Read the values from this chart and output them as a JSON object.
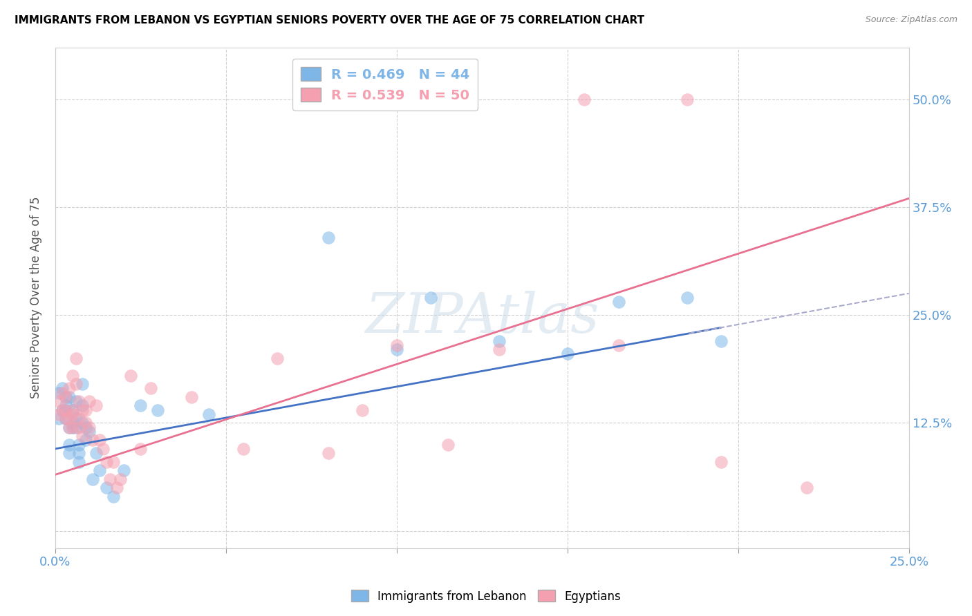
{
  "title": "IMMIGRANTS FROM LEBANON VS EGYPTIAN SENIORS POVERTY OVER THE AGE OF 75 CORRELATION CHART",
  "source": "Source: ZipAtlas.com",
  "ylabel": "Seniors Poverty Over the Age of 75",
  "xlim": [
    0.0,
    0.25
  ],
  "ylim": [
    -0.02,
    0.56
  ],
  "ytick_positions": [
    0.0,
    0.125,
    0.25,
    0.375,
    0.5
  ],
  "ytick_labels": [
    "",
    "12.5%",
    "25.0%",
    "37.5%",
    "50.0%"
  ],
  "xtick_positions": [
    0.0,
    0.05,
    0.1,
    0.15,
    0.2,
    0.25
  ],
  "xtick_labels": [
    "0.0%",
    "",
    "",
    "",
    "",
    "25.0%"
  ],
  "legend_labels": [
    "R = 0.469   N = 44",
    "R = 0.539   N = 50"
  ],
  "blue_color": "#7eb6e8",
  "pink_color": "#f4a0b0",
  "blue_line_color": "#4472c4",
  "pink_line_color": "#e87090",
  "watermark": "ZIPAtlas",
  "blue_intercept": 0.095,
  "blue_slope": 0.72,
  "pink_intercept": 0.065,
  "pink_slope": 1.28,
  "blue_points_x": [
    0.001,
    0.001,
    0.002,
    0.002,
    0.003,
    0.003,
    0.003,
    0.003,
    0.004,
    0.004,
    0.004,
    0.004,
    0.005,
    0.005,
    0.005,
    0.006,
    0.006,
    0.006,
    0.007,
    0.007,
    0.007,
    0.008,
    0.008,
    0.008,
    0.009,
    0.009,
    0.01,
    0.011,
    0.012,
    0.013,
    0.015,
    0.017,
    0.02,
    0.025,
    0.03,
    0.045,
    0.08,
    0.1,
    0.11,
    0.13,
    0.15,
    0.165,
    0.185,
    0.195
  ],
  "blue_points_y": [
    0.13,
    0.16,
    0.14,
    0.165,
    0.13,
    0.145,
    0.155,
    0.14,
    0.1,
    0.12,
    0.155,
    0.09,
    0.125,
    0.12,
    0.14,
    0.12,
    0.13,
    0.15,
    0.08,
    0.1,
    0.09,
    0.145,
    0.125,
    0.17,
    0.12,
    0.105,
    0.115,
    0.06,
    0.09,
    0.07,
    0.05,
    0.04,
    0.07,
    0.145,
    0.14,
    0.135,
    0.34,
    0.21,
    0.27,
    0.22,
    0.205,
    0.265,
    0.27,
    0.22
  ],
  "pink_points_x": [
    0.001,
    0.001,
    0.002,
    0.002,
    0.003,
    0.003,
    0.003,
    0.004,
    0.004,
    0.004,
    0.005,
    0.005,
    0.005,
    0.005,
    0.006,
    0.006,
    0.007,
    0.007,
    0.007,
    0.008,
    0.008,
    0.009,
    0.009,
    0.01,
    0.01,
    0.011,
    0.012,
    0.013,
    0.014,
    0.015,
    0.016,
    0.017,
    0.018,
    0.019,
    0.022,
    0.025,
    0.028,
    0.04,
    0.055,
    0.065,
    0.08,
    0.09,
    0.1,
    0.115,
    0.13,
    0.155,
    0.165,
    0.185,
    0.195,
    0.22
  ],
  "pink_points_y": [
    0.15,
    0.135,
    0.14,
    0.16,
    0.13,
    0.155,
    0.14,
    0.12,
    0.165,
    0.13,
    0.14,
    0.12,
    0.135,
    0.18,
    0.2,
    0.17,
    0.13,
    0.15,
    0.12,
    0.11,
    0.14,
    0.125,
    0.14,
    0.12,
    0.15,
    0.105,
    0.145,
    0.105,
    0.095,
    0.08,
    0.06,
    0.08,
    0.05,
    0.06,
    0.18,
    0.095,
    0.165,
    0.155,
    0.095,
    0.2,
    0.09,
    0.14,
    0.215,
    0.1,
    0.21,
    0.5,
    0.215,
    0.5,
    0.08,
    0.05
  ]
}
